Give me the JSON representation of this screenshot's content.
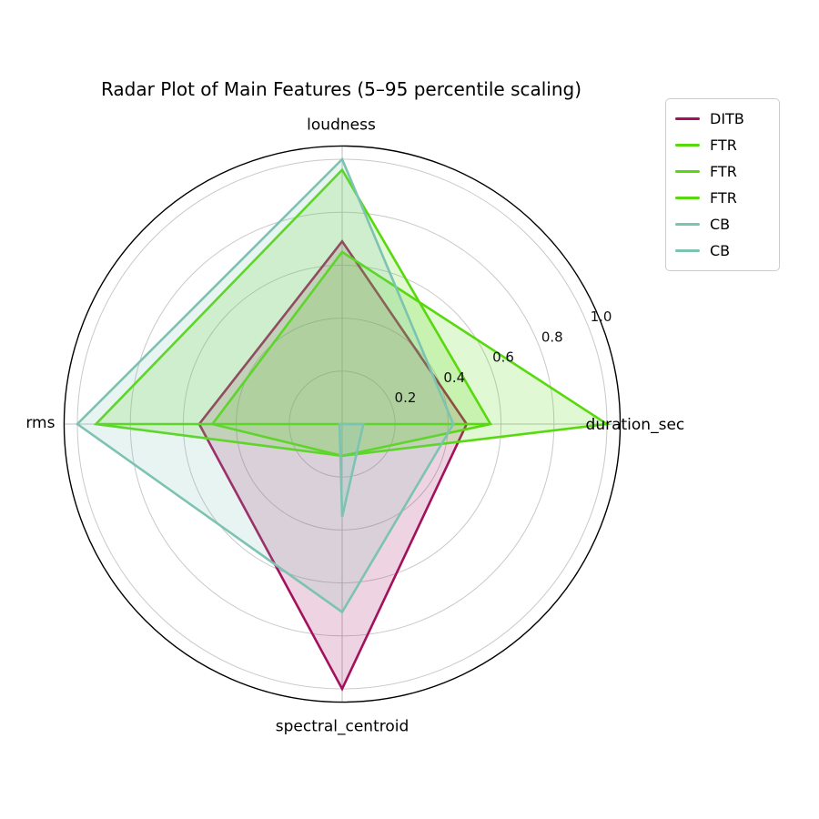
{
  "title": "Radar Plot of Main Features (5–95 percentile scaling)",
  "legend": {
    "entries": [
      {
        "label": "DITB",
        "color": "#a3105c"
      },
      {
        "label": "FTR",
        "color": "#58d90e"
      },
      {
        "label": "FTR",
        "color": "#58d90e"
      },
      {
        "label": "FTR",
        "color": "#58d90e"
      },
      {
        "label": "CB",
        "color": "#7cc3b1"
      },
      {
        "label": "CB",
        "color": "#7cc3b1"
      }
    ]
  },
  "chart_data": {
    "type": "radar",
    "title": "Radar Plot of Main Features (5–95 percentile scaling)",
    "categories": [
      "loudness",
      "duration_sec",
      "spectral_centroid",
      "rms"
    ],
    "r_ticks": [
      0.2,
      0.4,
      0.6,
      0.8,
      1.0
    ],
    "r_tick_labels": [
      "0.2",
      "0.4",
      "0.6",
      "0.8",
      "1.0"
    ],
    "rlim": [
      0,
      1.05
    ],
    "tick_label_angle_deg": 22.5,
    "grid": true,
    "legend_position": "upper right",
    "series": [
      {
        "name": "DITB",
        "color": "#a3105c",
        "values": [
          0.69,
          0.47,
          1.0,
          0.54
        ]
      },
      {
        "name": "FTR",
        "color": "#58d90e",
        "values": [
          0.96,
          0.56,
          0.12,
          0.93
        ]
      },
      {
        "name": "FTR",
        "color": "#58d90e",
        "values": [
          0.65,
          1.0,
          0.12,
          0.49
        ]
      },
      {
        "name": "FTR",
        "color": "#58d90e",
        "values": [
          0.0,
          0.56,
          0.0,
          0.93
        ]
      },
      {
        "name": "CB",
        "color": "#7cc3b1",
        "values": [
          1.0,
          0.42,
          0.71,
          1.0
        ]
      },
      {
        "name": "CB",
        "color": "#7cc3b1",
        "values": [
          0.0,
          0.08,
          0.35,
          0.01
        ]
      }
    ],
    "style": {
      "grid_color": "#c9c9c9",
      "spoke_color": "#bdbdbd",
      "spine_color": "#000000",
      "fill_opacity": 0.18,
      "line_width": 2.6,
      "tick_label_color": "#111111"
    }
  }
}
